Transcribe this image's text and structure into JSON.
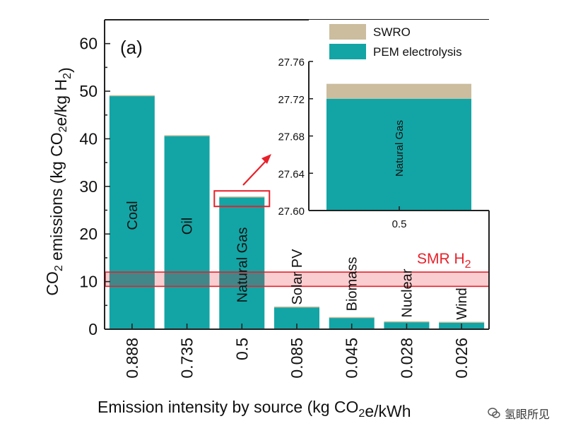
{
  "chart_data": {
    "type": "bar",
    "panel_label": "(a)",
    "ylabel": "CO2 emissions (kg CO2e/kg H2)",
    "xlabel": "Emission intensity by source (kg CO2e/kWh",
    "ylim": [
      0,
      65
    ],
    "yticks": [
      0,
      10,
      20,
      30,
      40,
      50,
      60
    ],
    "categories": [
      "0.888",
      "0.735",
      "0.5",
      "0.085",
      "0.045",
      "0.028",
      "0.026"
    ],
    "sources": [
      "Coal",
      "Oil",
      "Natural Gas",
      "Solar PV",
      "Biomass",
      "Nuclear",
      "Wind"
    ],
    "series": [
      {
        "name": "PEM electrolysis",
        "values": [
          49.0,
          40.6,
          27.72,
          4.6,
          2.4,
          1.5,
          1.4
        ],
        "color": "#13a5a5"
      },
      {
        "name": "SWRO",
        "values": [
          0.016,
          0.016,
          0.016,
          0.016,
          0.016,
          0.016,
          0.016
        ],
        "color": "#cbbd9e"
      }
    ],
    "smr_band": {
      "label": "SMR H2",
      "range": [
        9,
        12
      ],
      "color": "#e8202a"
    },
    "inset": {
      "xlabel": "0.5",
      "ylim": [
        27.6,
        27.76
      ],
      "yticks": [
        "27.60",
        "27.64",
        "27.68",
        "27.72",
        "27.76"
      ],
      "bar_label": "Natural Gas",
      "pem_value": 27.72,
      "total_value": 27.736
    },
    "legend": [
      {
        "label": "SWRO",
        "color": "#cbbd9e"
      },
      {
        "label": "PEM electrolysis",
        "color": "#13a5a5"
      }
    ]
  },
  "watermark": {
    "text": "氢眼所见",
    "icon": "wechat-icon"
  }
}
